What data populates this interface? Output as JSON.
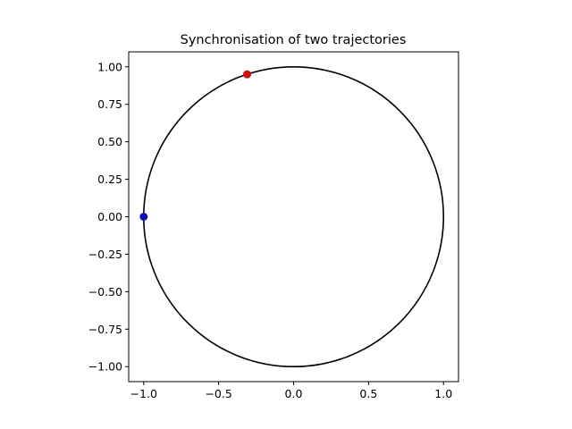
{
  "chart_data": {
    "type": "scatter",
    "title": "Synchronisation of two trajectories",
    "xlabel": "",
    "ylabel": "",
    "xlim": [
      -1.1,
      1.1
    ],
    "ylim": [
      -1.1,
      1.1
    ],
    "x_ticks": [
      -1.0,
      -0.5,
      0.0,
      0.5,
      1.0
    ],
    "x_tick_labels": [
      "−1.0",
      "−0.5",
      "0.0",
      "0.5",
      "1.0"
    ],
    "y_ticks": [
      1.0,
      0.75,
      0.5,
      0.25,
      0.0,
      -0.25,
      -0.5,
      -0.75,
      -1.0
    ],
    "y_tick_labels": [
      "1.00",
      "0.75",
      "0.50",
      "0.25",
      "0.00",
      "−0.25",
      "−0.50",
      "−0.75",
      "−1.00"
    ],
    "grid": false,
    "circle": {
      "center": [
        0,
        0
      ],
      "radius": 1,
      "color": "#000000"
    },
    "points": [
      {
        "x": -0.31,
        "y": 0.95,
        "color": "#cc1111"
      },
      {
        "x": -1.0,
        "y": 0.0,
        "color": "#1010bb"
      }
    ]
  }
}
